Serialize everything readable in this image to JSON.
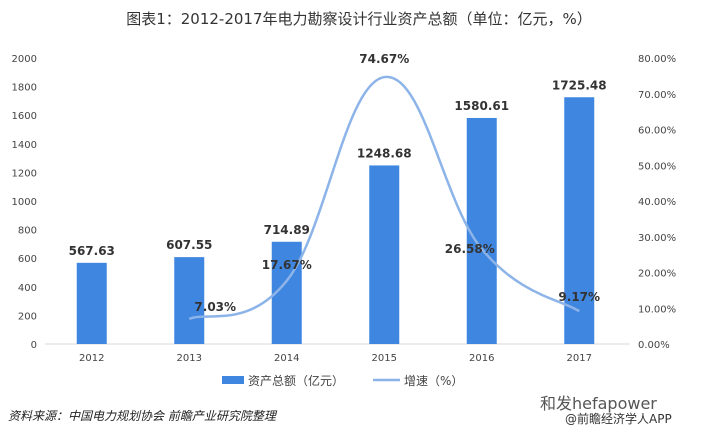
{
  "chart_data": {
    "type": "bar",
    "title": "图表1：2012-2017年电力勘察设计行业资产总额（单位：亿元，%）",
    "categories": [
      "2012",
      "2013",
      "2014",
      "2015",
      "2016",
      "2017"
    ],
    "series": [
      {
        "name": "资产总额（亿元）",
        "type": "bar",
        "axis": "left",
        "color": "#3f86e0",
        "values": [
          567.63,
          607.55,
          714.89,
          1248.68,
          1580.61,
          1725.48
        ],
        "labels": [
          "567.63",
          "607.55",
          "714.89",
          "1248.68",
          "1580.61",
          "1725.48"
        ]
      },
      {
        "name": "增速（%）",
        "type": "line",
        "axis": "right",
        "color": "#8db4e8",
        "values": [
          null,
          7.03,
          17.67,
          74.67,
          26.58,
          9.17
        ],
        "labels": [
          "",
          "7.03%",
          "17.67%",
          "74.67%",
          "26.58%",
          "9.17%"
        ]
      }
    ],
    "y_left": {
      "range": [
        0,
        2000
      ],
      "ticks": [
        "0",
        "200",
        "400",
        "600",
        "800",
        "1000",
        "1200",
        "1400",
        "1600",
        "1800",
        "2000"
      ]
    },
    "y_right": {
      "range": [
        0,
        80
      ],
      "ticks": [
        "0.00%",
        "10.00%",
        "20.00%",
        "30.00%",
        "40.00%",
        "50.00%",
        "60.00%",
        "70.00%",
        "80.00%"
      ]
    },
    "grid": false,
    "legend_placement": "bottom"
  },
  "source": "资料来源：中国电力规划协会 前瞻产业研究院整理",
  "watermark": {
    "line1": "和发hefapower",
    "line2": "@前瞻经济学人APP",
    "background": "前瞻产业研究院"
  }
}
